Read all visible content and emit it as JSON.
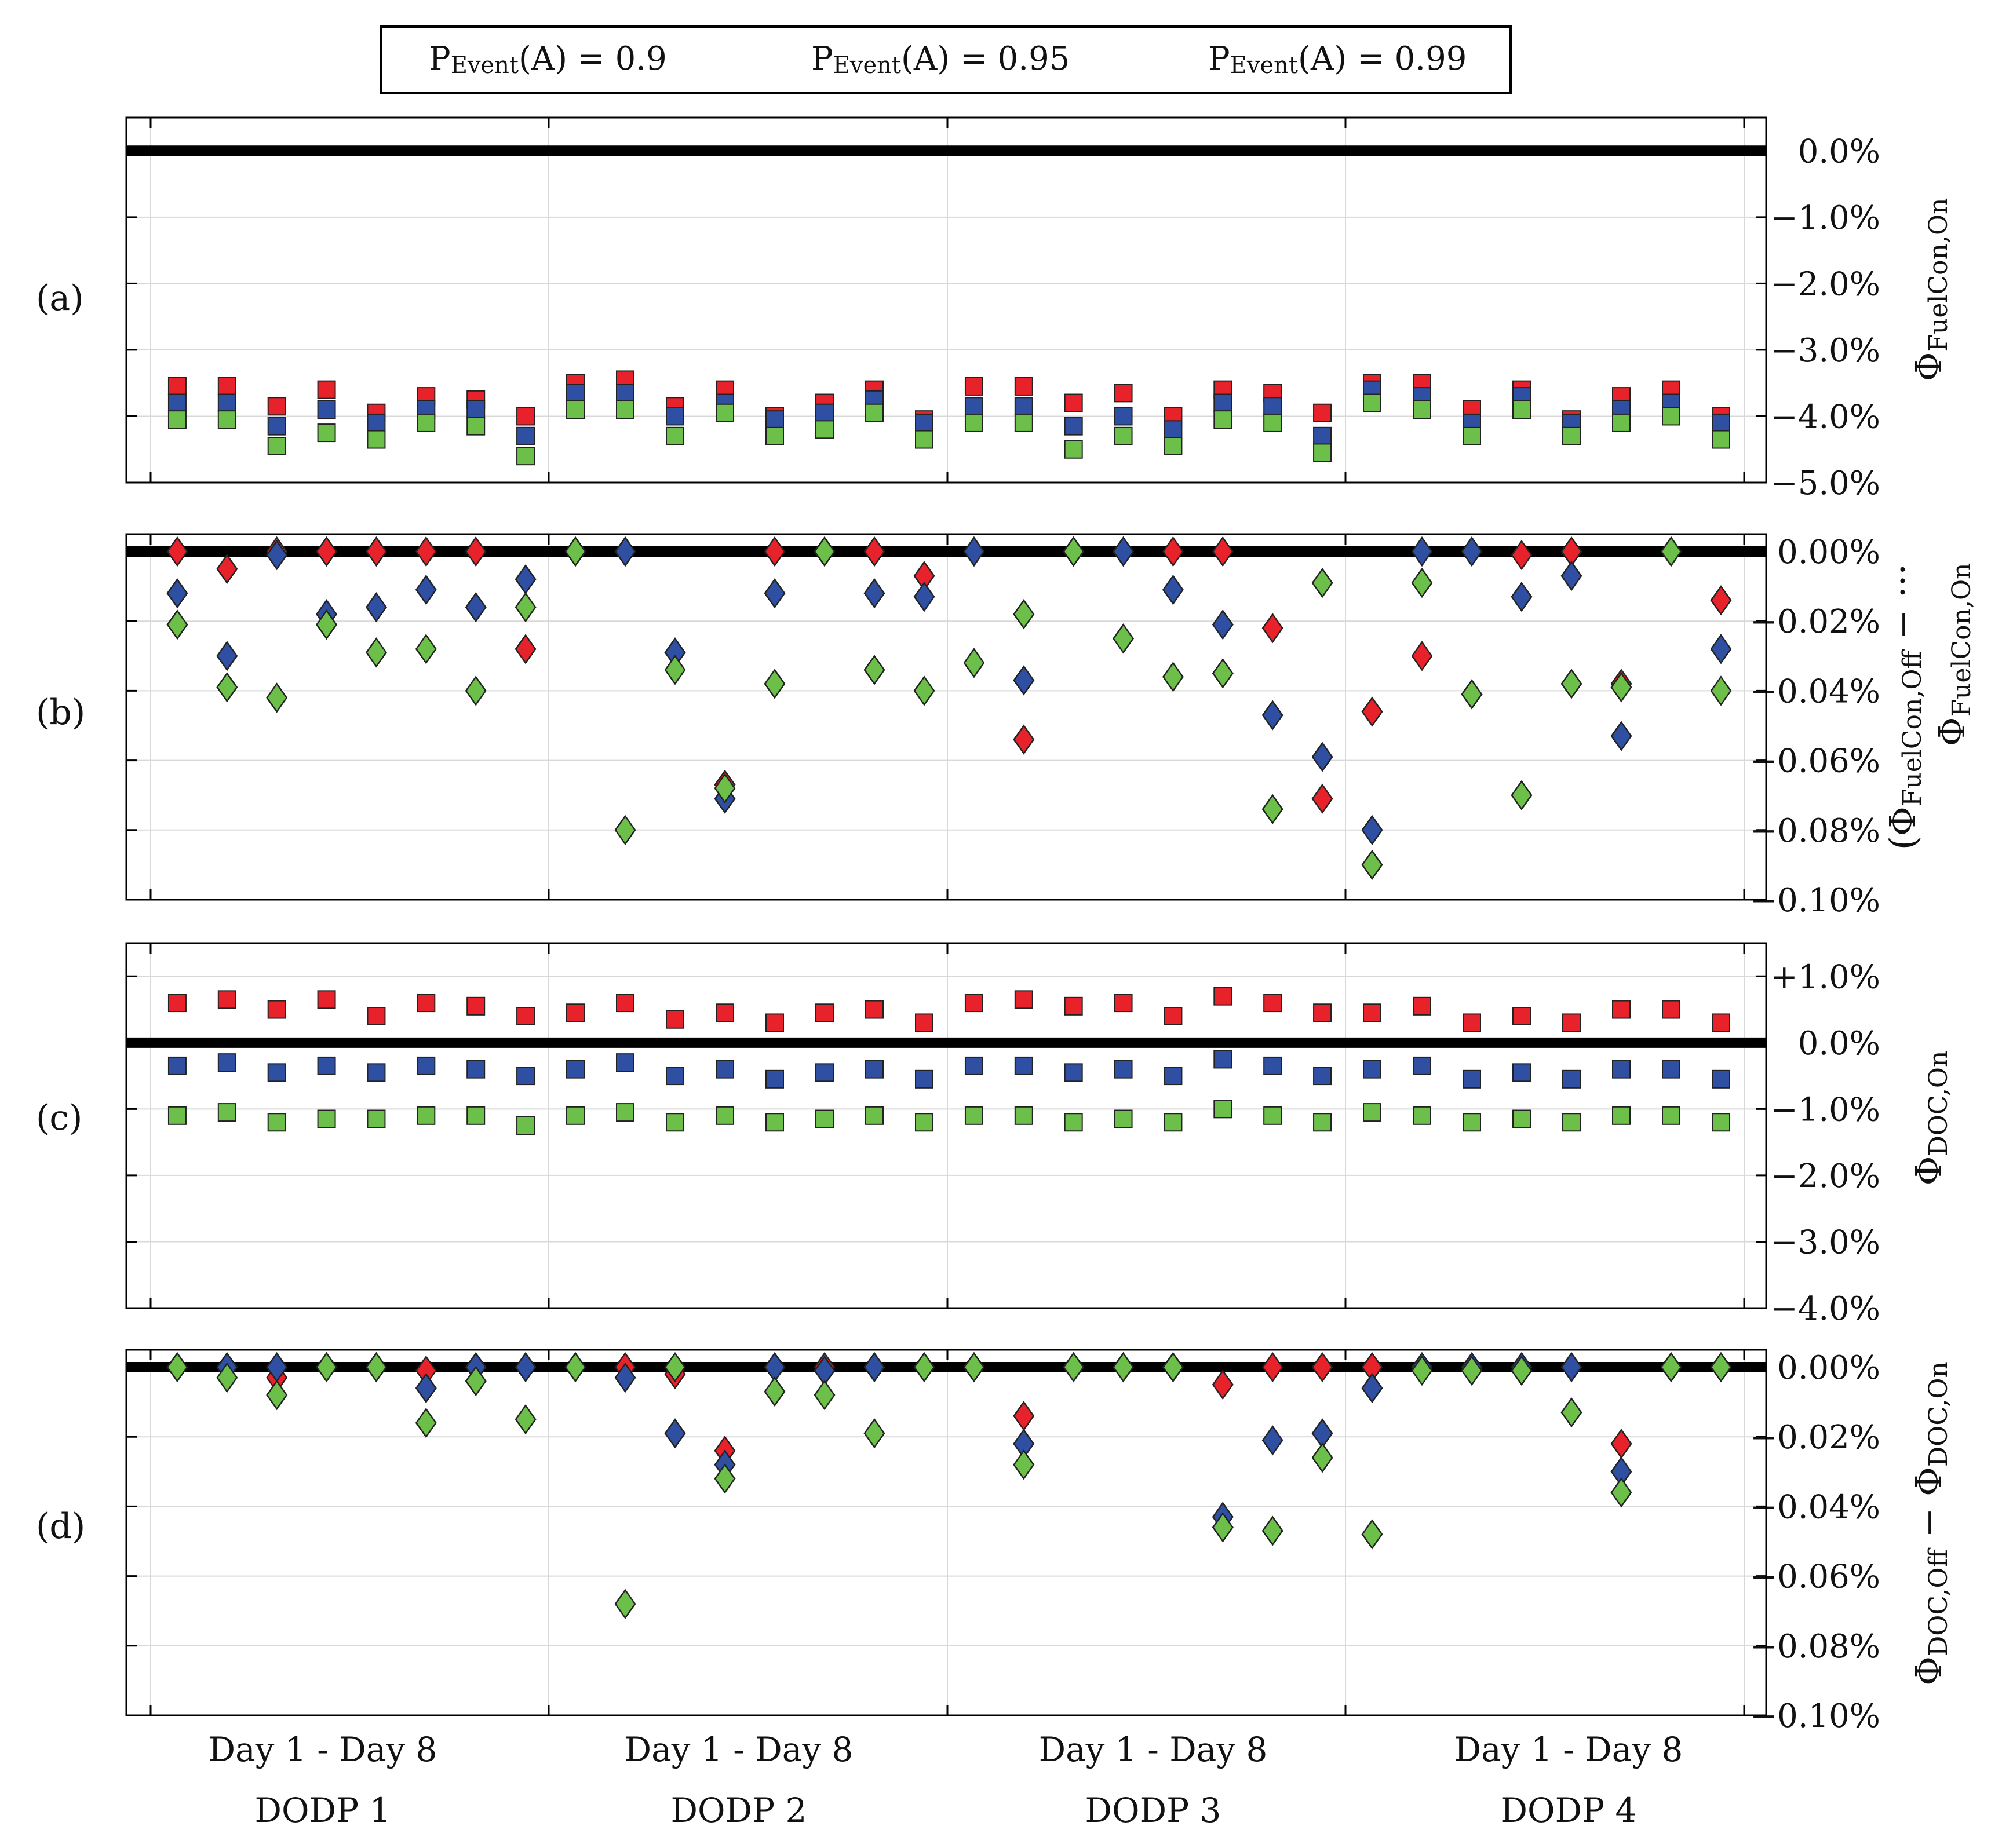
{
  "legend": [
    {
      "label": "PEvent(A) = 0.9",
      "prefix": "P",
      "sub": "Event",
      "suffix": "(A) = 0.9",
      "color": "#e8222a"
    },
    {
      "label": "PEvent(A) = 0.95",
      "prefix": "P",
      "sub": "Event",
      "suffix": "(A) = 0.95",
      "color": "#2e4fa2"
    },
    {
      "label": "PEvent(A) = 0.99",
      "prefix": "P",
      "sub": "Event",
      "suffix": "(A) = 0.99",
      "color": "#6cc04a"
    }
  ],
  "groups": [
    {
      "days": "Day 1 - Day 8",
      "name": "DODP 1"
    },
    {
      "days": "Day 1 - Day 8",
      "name": "DODP 2"
    },
    {
      "days": "Day 1 - Day 8",
      "name": "DODP 3"
    },
    {
      "days": "Day 1 - Day 8",
      "name": "DODP 4"
    }
  ],
  "chart_data": [
    {
      "type": "scatter",
      "panel": "(a)",
      "marker": "square",
      "ylabel": "ΦFuelCon,On",
      "ylabel_main": "Φ",
      "ylabel_sub": "FuelCon,On",
      "ylim": [
        -5.0,
        0.5
      ],
      "yticks": [
        0,
        -1,
        -2,
        -3,
        -4,
        -5
      ],
      "yticklabels": [
        "0.0%",
        "−1.0%",
        "−2.0%",
        "−3.0%",
        "−4.0%",
        "−5.0%"
      ],
      "reference_line": 0,
      "series": [
        {
          "name": "PEvent(A) = 0.9",
          "values": [
            -3.55,
            -3.55,
            -3.85,
            -3.6,
            -3.95,
            -3.7,
            -3.75,
            -4.0,
            -3.5,
            -3.45,
            -3.85,
            -3.6,
            -4.0,
            -3.8,
            -3.6,
            -4.05,
            -3.55,
            -3.55,
            -3.8,
            -3.65,
            -4.0,
            -3.6,
            -3.65,
            -3.95,
            -3.5,
            -3.5,
            -3.9,
            -3.6,
            -4.05,
            -3.7,
            -3.6,
            -4.0
          ]
        },
        {
          "name": "PEvent(A) = 0.95",
          "values": [
            -3.8,
            -3.8,
            -4.15,
            -3.9,
            -4.1,
            -3.9,
            -3.9,
            -4.3,
            -3.65,
            -3.65,
            -4.0,
            -3.8,
            -4.05,
            -3.95,
            -3.75,
            -4.1,
            -3.85,
            -3.85,
            -4.15,
            -4.0,
            -4.2,
            -3.8,
            -3.85,
            -4.3,
            -3.6,
            -3.7,
            -4.1,
            -3.7,
            -4.1,
            -3.9,
            -3.8,
            -4.1
          ]
        },
        {
          "name": "PEvent(A) = 0.99",
          "values": [
            -4.05,
            -4.05,
            -4.45,
            -4.25,
            -4.35,
            -4.1,
            -4.15,
            -4.6,
            -3.9,
            -3.9,
            -4.3,
            -3.95,
            -4.3,
            -4.2,
            -3.95,
            -4.35,
            -4.1,
            -4.1,
            -4.5,
            -4.3,
            -4.45,
            -4.05,
            -4.1,
            -4.55,
            -3.8,
            -3.9,
            -4.3,
            -3.9,
            -4.3,
            -4.1,
            -4.0,
            -4.35
          ]
        }
      ]
    },
    {
      "type": "scatter",
      "panel": "(b)",
      "marker": "diamond",
      "ylabel": "(ΦFuelCon,Off − ... ΦFuelCon,On)",
      "ylabel_line1_pre": "(Φ",
      "ylabel_line1_sub": "FuelCon,Off",
      "ylabel_line1_post": " − ···",
      "ylabel_line2_pre": "Φ",
      "ylabel_line2_sub": "FuelCon,On",
      "ylabel_line2_post": ")",
      "ylim": [
        -0.1,
        0.005
      ],
      "yticks": [
        0,
        -0.02,
        -0.04,
        -0.06,
        -0.08,
        -0.1
      ],
      "yticklabels": [
        "0.00%",
        "−0.02%",
        "−0.04%",
        "−0.06%",
        "−0.08%",
        "−0.10%"
      ],
      "reference_line": 0,
      "series": [
        {
          "name": "PEvent(A) = 0.9",
          "values": [
            0,
            -0.005,
            0,
            0,
            0,
            0,
            0,
            -0.028,
            0,
            0,
            -0.029,
            -0.067,
            0,
            0,
            0,
            -0.007,
            0,
            -0.054,
            0,
            0,
            0,
            0,
            -0.022,
            -0.071,
            -0.046,
            -0.03,
            -0.041,
            -0.001,
            0,
            -0.038,
            0,
            -0.014
          ]
        },
        {
          "name": "PEvent(A) = 0.95",
          "values": [
            -0.012,
            -0.03,
            -0.001,
            -0.018,
            -0.016,
            -0.011,
            -0.016,
            -0.008,
            0,
            0,
            -0.029,
            -0.071,
            -0.012,
            0,
            -0.012,
            -0.013,
            0,
            -0.037,
            0,
            0,
            -0.011,
            -0.021,
            -0.047,
            -0.059,
            -0.08,
            0,
            0,
            -0.013,
            -0.007,
            -0.053,
            0,
            -0.028
          ]
        },
        {
          "name": "PEvent(A) = 0.99",
          "values": [
            -0.021,
            -0.039,
            -0.042,
            -0.021,
            -0.029,
            -0.028,
            -0.04,
            -0.016,
            0,
            -0.08,
            -0.034,
            -0.068,
            -0.038,
            0,
            -0.034,
            -0.04,
            -0.032,
            -0.018,
            0,
            -0.025,
            -0.036,
            -0.035,
            -0.074,
            -0.009,
            -0.09,
            -0.009,
            -0.041,
            -0.07,
            -0.038,
            -0.039,
            0,
            -0.04
          ]
        }
      ]
    },
    {
      "type": "scatter",
      "panel": "(c)",
      "marker": "square",
      "ylabel": "ΦDOC,On",
      "ylabel_main": "Φ",
      "ylabel_sub": "DOC,On",
      "ylim": [
        -4.0,
        1.5
      ],
      "yticks": [
        1,
        0,
        -1,
        -2,
        -3,
        -4
      ],
      "yticklabels": [
        "+1.0%",
        "0.0%",
        "−1.0%",
        "−2.0%",
        "−3.0%",
        "−4.0%"
      ],
      "reference_line": 0,
      "series": [
        {
          "name": "PEvent(A) = 0.9",
          "values": [
            0.6,
            0.65,
            0.5,
            0.65,
            0.4,
            0.6,
            0.55,
            0.4,
            0.45,
            0.6,
            0.35,
            0.45,
            0.3,
            0.45,
            0.5,
            0.3,
            0.6,
            0.65,
            0.55,
            0.6,
            0.4,
            0.7,
            0.6,
            0.45,
            0.45,
            0.55,
            0.3,
            0.4,
            0.3,
            0.5,
            0.5,
            0.3
          ]
        },
        {
          "name": "PEvent(A) = 0.95",
          "values": [
            -0.35,
            -0.3,
            -0.45,
            -0.35,
            -0.45,
            -0.35,
            -0.4,
            -0.5,
            -0.4,
            -0.3,
            -0.5,
            -0.4,
            -0.55,
            -0.45,
            -0.4,
            -0.55,
            -0.35,
            -0.35,
            -0.45,
            -0.4,
            -0.5,
            -0.25,
            -0.35,
            -0.5,
            -0.4,
            -0.35,
            -0.55,
            -0.45,
            -0.55,
            -0.4,
            -0.4,
            -0.55
          ]
        },
        {
          "name": "PEvent(A) = 0.99",
          "values": [
            -1.1,
            -1.05,
            -1.2,
            -1.15,
            -1.15,
            -1.1,
            -1.1,
            -1.25,
            -1.1,
            -1.05,
            -1.2,
            -1.1,
            -1.2,
            -1.15,
            -1.1,
            -1.2,
            -1.1,
            -1.1,
            -1.2,
            -1.15,
            -1.2,
            -1.0,
            -1.1,
            -1.2,
            -1.05,
            -1.1,
            -1.2,
            -1.15,
            -1.2,
            -1.1,
            -1.1,
            -1.2
          ]
        }
      ]
    },
    {
      "type": "scatter",
      "panel": "(d)",
      "marker": "diamond",
      "ylabel": "ΦDOC,Off − ΦDOC,On",
      "ylabel_a": "Φ",
      "ylabel_a_sub": "DOC,Off",
      "ylabel_mid": " − Φ",
      "ylabel_b_sub": "DOC,On",
      "ylim": [
        -0.1,
        0.005
      ],
      "yticks": [
        0,
        -0.02,
        -0.04,
        -0.06,
        -0.08,
        -0.1
      ],
      "yticklabels": [
        "0.00%",
        "−0.02%",
        "−0.04%",
        "−0.06%",
        "−0.08%",
        "−0.10%"
      ],
      "reference_line": 0,
      "series": [
        {
          "name": "PEvent(A) = 0.9",
          "values": [
            0,
            0,
            -0.003,
            0,
            0,
            -0.001,
            0,
            0,
            0,
            0,
            -0.002,
            -0.024,
            0,
            0,
            0,
            0,
            0,
            -0.014,
            0,
            0,
            0,
            -0.005,
            0,
            0,
            0,
            0,
            0,
            0,
            0,
            -0.022,
            0,
            0
          ]
        },
        {
          "name": "PEvent(A) = 0.95",
          "values": [
            0,
            0,
            0,
            0,
            0,
            -0.006,
            0,
            0,
            0,
            -0.003,
            -0.019,
            -0.028,
            0,
            -0.001,
            0,
            0,
            0,
            -0.022,
            0,
            0,
            0,
            -0.043,
            -0.021,
            -0.019,
            -0.006,
            0,
            0,
            0,
            0,
            -0.03,
            0,
            0
          ]
        },
        {
          "name": "PEvent(A) = 0.99",
          "values": [
            0,
            -0.003,
            -0.008,
            0,
            0,
            -0.016,
            -0.004,
            -0.015,
            0,
            -0.068,
            0,
            -0.032,
            -0.007,
            -0.008,
            -0.019,
            0,
            0,
            -0.028,
            0,
            0,
            0,
            -0.046,
            -0.047,
            -0.026,
            -0.048,
            -0.001,
            -0.001,
            -0.001,
            -0.013,
            -0.036,
            0,
            0
          ]
        }
      ]
    }
  ]
}
